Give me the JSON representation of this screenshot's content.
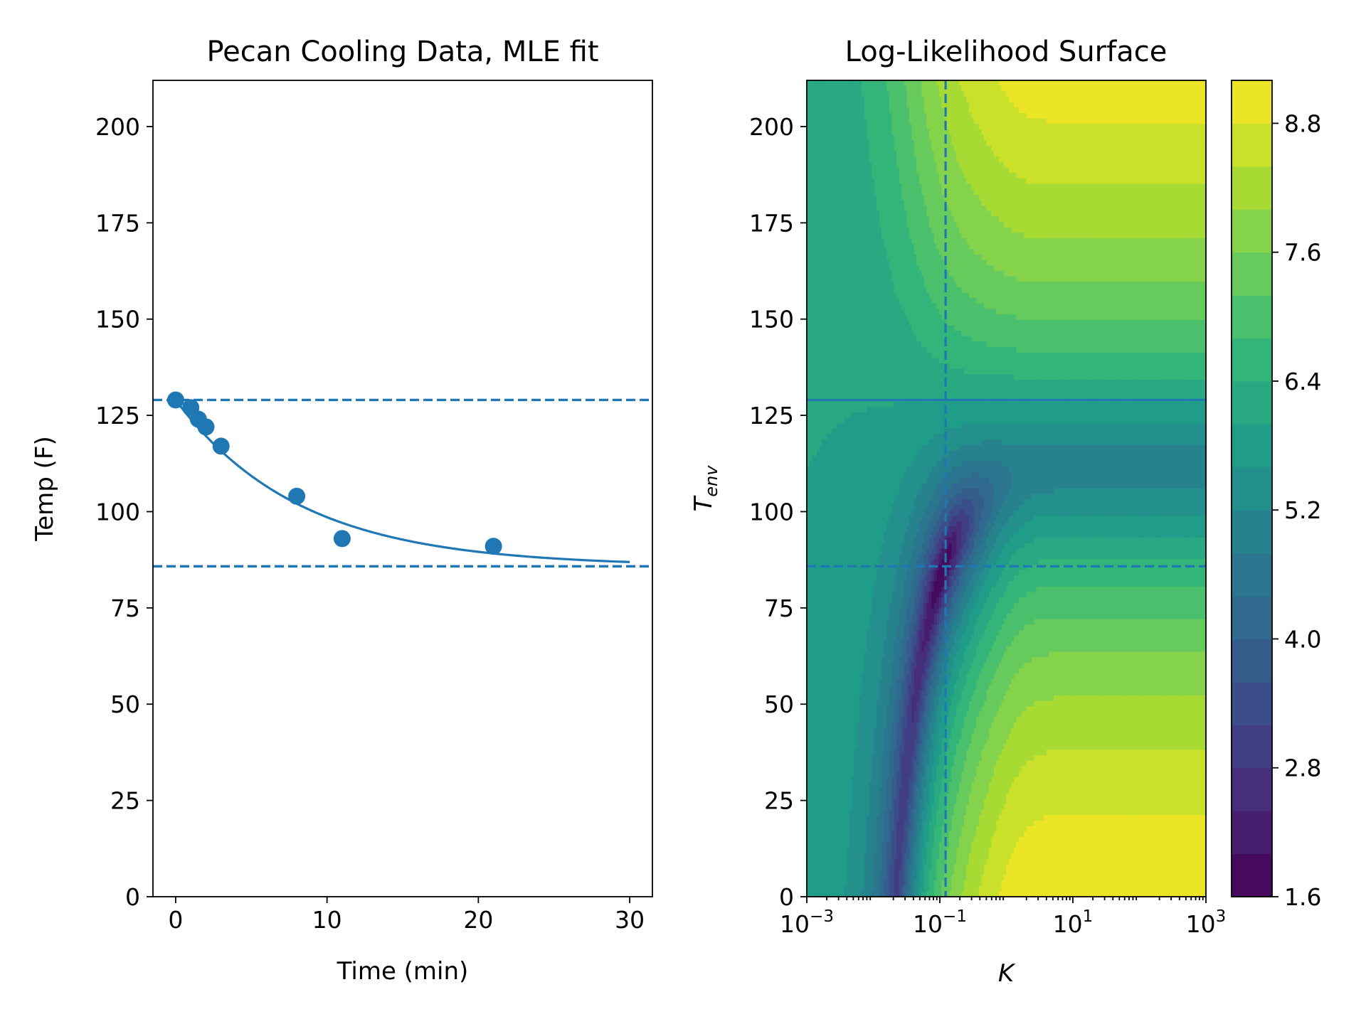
{
  "chart_data": [
    {
      "type": "scatter",
      "title": "Pecan Cooling Data, MLE fit",
      "xlabel": "Time (min)",
      "ylabel": "Temp (F)",
      "xlim": [
        -1.5,
        31.5
      ],
      "ylim": [
        0,
        212
      ],
      "xticks": [
        "0",
        "10",
        "20",
        "30"
      ],
      "yticks": [
        "0",
        "25",
        "50",
        "75",
        "100",
        "125",
        "150",
        "175",
        "200"
      ],
      "color": "#1f77b4",
      "points": {
        "x": [
          0,
          1,
          1.5,
          2,
          3,
          8,
          11,
          21
        ],
        "y": [
          129,
          127,
          124,
          122,
          117,
          104,
          93,
          91
        ]
      },
      "fit_curve": {
        "model": "newton-cooling",
        "x_range": [
          0,
          30
        ],
        "T0": 129,
        "T_env": 85.8,
        "k": 0.122
      },
      "hlines": [
        {
          "y": 129,
          "style": "dashed"
        },
        {
          "y": 85.8,
          "style": "dashed"
        }
      ]
    },
    {
      "type": "heatmap",
      "title": "Log-Likelihood Surface",
      "xlabel": "K",
      "ylabel": "T",
      "ylabel_sub": "env",
      "xscale": "log",
      "xlim": [
        0.001,
        1000
      ],
      "ylim": [
        0,
        212
      ],
      "xticks": [
        {
          "base": "10",
          "exp": "−3"
        },
        {
          "base": "10",
          "exp": "−1"
        },
        {
          "base": "10",
          "exp": "1"
        },
        {
          "base": "10",
          "exp": "3"
        }
      ],
      "yticks": [
        "0",
        "25",
        "50",
        "75",
        "100",
        "125",
        "150",
        "175",
        "200"
      ],
      "colormap": "viridis",
      "color_range": [
        1.6,
        9.2
      ],
      "colorbar_ticks": [
        "1.6",
        "2.8",
        "4.0",
        "5.2",
        "6.4",
        "7.6",
        "8.8"
      ],
      "mle_point": {
        "K": 0.122,
        "T_env": 85.8
      },
      "reference_lines": [
        {
          "orientation": "vertical",
          "K": 0.122,
          "style": "dashed"
        },
        {
          "orientation": "horizontal",
          "T_env": 85.8,
          "style": "dashed"
        },
        {
          "orientation": "horizontal",
          "T_env": 129,
          "style": "solid"
        }
      ],
      "line_color": "#1f77b4"
    }
  ]
}
